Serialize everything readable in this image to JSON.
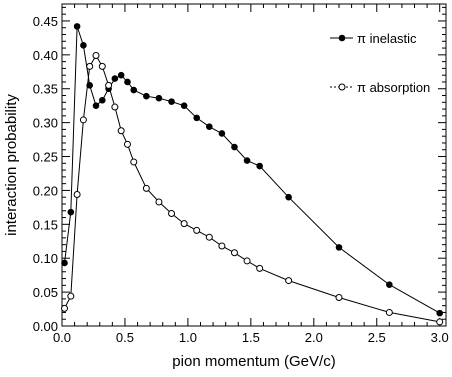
{
  "chart_data": {
    "type": "line",
    "title": "",
    "xlabel": "pion momentum (GeV/c)",
    "ylabel": "interaction probability",
    "xlim": [
      0.0,
      3.05
    ],
    "ylim": [
      0.0,
      0.475
    ],
    "xticks": [
      0.0,
      0.5,
      1.0,
      1.5,
      2.0,
      2.5,
      3.0
    ],
    "xtick_labels": [
      "0.0",
      "0.5",
      "1.0",
      "1.5",
      "2.0",
      "2.5",
      "3.0"
    ],
    "yticks": [
      0.0,
      0.05,
      0.1,
      0.15,
      0.2,
      0.25,
      0.3,
      0.35,
      0.4,
      0.45
    ],
    "ytick_labels": [
      "0.00",
      "0.05",
      "0.10",
      "0.15",
      "0.20",
      "0.25",
      "0.30",
      "0.35",
      "0.40",
      "0.45"
    ],
    "grid": false,
    "legend_position": "top-right",
    "series": [
      {
        "name": "π inelastic",
        "marker": "filled-circle",
        "line": "solid",
        "color": "#000000",
        "x": [
          0.02,
          0.07,
          0.12,
          0.17,
          0.22,
          0.27,
          0.32,
          0.37,
          0.42,
          0.47,
          0.52,
          0.57,
          0.67,
          0.77,
          0.87,
          0.97,
          1.07,
          1.17,
          1.27,
          1.37,
          1.47,
          1.57,
          1.8,
          2.2,
          2.6,
          3.0
        ],
        "y": [
          0.093,
          0.168,
          0.442,
          0.414,
          0.355,
          0.325,
          0.333,
          0.35,
          0.365,
          0.37,
          0.36,
          0.348,
          0.339,
          0.336,
          0.331,
          0.325,
          0.307,
          0.294,
          0.284,
          0.264,
          0.244,
          0.236,
          0.19,
          0.116,
          0.061,
          0.019
        ]
      },
      {
        "name": "π absorption",
        "marker": "open-circle",
        "line": "solid",
        "color": "#000000",
        "x": [
          0.02,
          0.07,
          0.12,
          0.17,
          0.22,
          0.27,
          0.32,
          0.37,
          0.42,
          0.47,
          0.52,
          0.57,
          0.67,
          0.77,
          0.87,
          0.97,
          1.07,
          1.17,
          1.27,
          1.37,
          1.47,
          1.57,
          1.8,
          2.2,
          2.6,
          3.0
        ],
        "y": [
          0.026,
          0.044,
          0.194,
          0.304,
          0.383,
          0.399,
          0.383,
          0.355,
          0.323,
          0.288,
          0.268,
          0.242,
          0.203,
          0.183,
          0.166,
          0.151,
          0.141,
          0.131,
          0.118,
          0.108,
          0.096,
          0.085,
          0.067,
          0.042,
          0.02,
          0.006
        ]
      }
    ]
  }
}
